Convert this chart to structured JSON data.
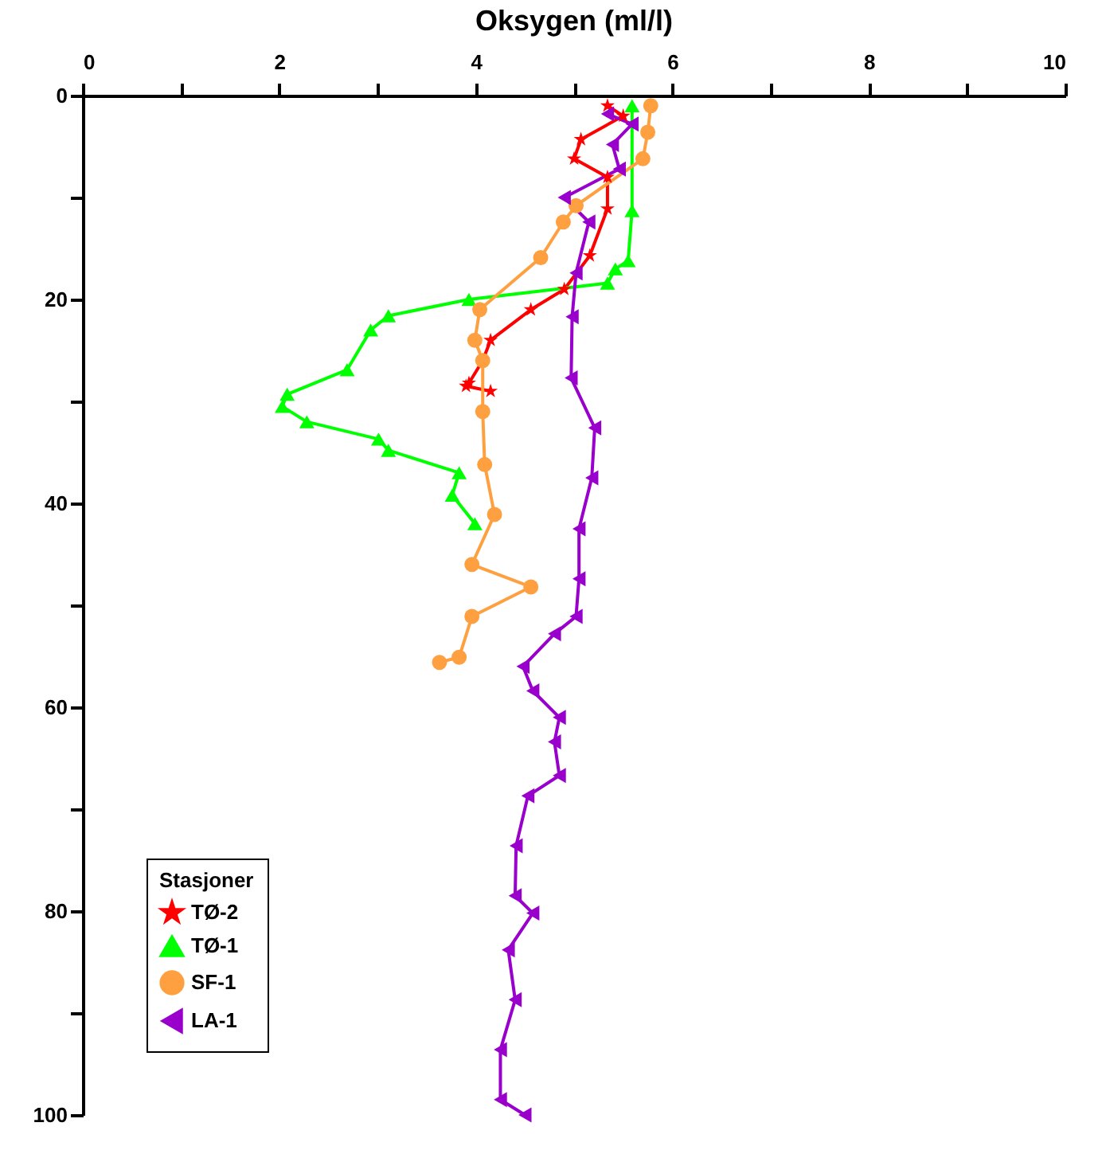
{
  "chart_data": {
    "type": "line",
    "title": "Oksygen (ml/l)",
    "legend_title": "Stasjoner",
    "legend": "bottom left",
    "grid": false,
    "line_style": "solid",
    "xlim": [
      0,
      10
    ],
    "xticks": [
      0,
      {
        "value": 1,
        "label": null
      },
      2,
      {
        "value": 3,
        "label": null
      },
      4,
      {
        "value": 5,
        "label": null
      },
      6,
      {
        "value": 7,
        "label": null
      },
      8,
      {
        "value": 9,
        "label": null
      },
      10
    ],
    "ylim": [
      100,
      0
    ],
    "yticks": [
      0,
      {
        "value": 10,
        "label": null
      },
      20,
      {
        "value": 30,
        "label": null
      },
      40,
      {
        "value": 50,
        "label": null
      },
      60,
      {
        "value": 70,
        "label": null
      },
      80,
      {
        "value": 90,
        "label": null
      },
      100
    ],
    "series": [
      {
        "name": "TØ-2",
        "color": "#ff0000",
        "marker": "star",
        "x": [
          5.34,
          5.5,
          5.07,
          5.0,
          5.34,
          5.34,
          5.16,
          4.9,
          4.56,
          4.15,
          4.07,
          3.93,
          3.9,
          4.15
        ],
        "values": [
          1,
          2,
          4.3,
          6.2,
          8,
          11.1,
          15.7,
          19,
          21,
          24,
          26,
          28.2,
          28.5,
          29
        ]
      },
      {
        "name": "TØ-1",
        "color": "#00ff00",
        "marker": "triangle",
        "x": [
          5.59,
          5.59,
          5.55,
          5.42,
          5.34,
          3.93,
          3.11,
          2.93,
          2.69,
          2.08,
          2.03,
          2.28,
          3.01,
          3.11,
          3.83,
          3.76,
          3.99
        ],
        "values": [
          1,
          11.3,
          16.2,
          17,
          18.4,
          20,
          21.6,
          23,
          26.9,
          29.3,
          30.5,
          32,
          33.7,
          34.8,
          37,
          39.2,
          42
        ]
      },
      {
        "name": "SF-1",
        "color": "#ffa040",
        "marker": "circle",
        "x": [
          5.78,
          5.75,
          5.7,
          5.02,
          4.89,
          4.66,
          4.04,
          3.99,
          4.07,
          4.07,
          4.09,
          4.19,
          3.96,
          4.56,
          3.96,
          3.83,
          3.63
        ],
        "values": [
          1,
          3.6,
          6.2,
          10.8,
          12.4,
          15.9,
          21,
          24,
          26,
          31,
          36.2,
          41.1,
          46,
          48.2,
          51.1,
          55.1,
          55.6
        ]
      },
      {
        "name": "LA-1",
        "color": "#9900cc",
        "marker": "triangle-left",
        "x": [
          5.34,
          5.59,
          5.39,
          5.46,
          4.9,
          5.15,
          5.02,
          4.98,
          4.97,
          5.21,
          5.18,
          5.05,
          5.05,
          5.02,
          4.8,
          4.48,
          4.58,
          4.85,
          4.8,
          4.85,
          4.53,
          4.41,
          4.4,
          4.58,
          4.33,
          4.4,
          4.25,
          4.25,
          4.5
        ],
        "values": [
          1.8,
          2.8,
          4.8,
          7.2,
          10,
          12.4,
          17.4,
          21.7,
          27.7,
          32.6,
          37.5,
          42.5,
          47.4,
          51.1,
          52.8,
          56,
          58.4,
          61,
          63.4,
          66.7,
          68.7,
          73.6,
          78.5,
          80.2,
          83.8,
          88.7,
          93.6,
          98.5,
          100
        ]
      }
    ]
  }
}
